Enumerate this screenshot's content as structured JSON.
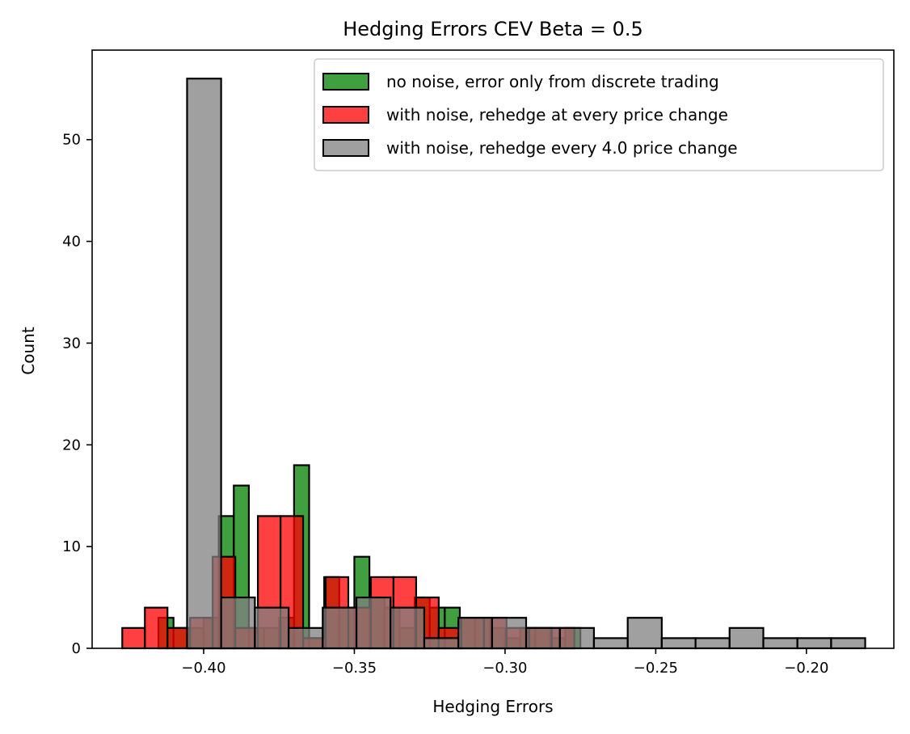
{
  "chart_data": {
    "type": "bar",
    "title": "Hedging Errors CEV Beta = 0.5",
    "xlabel": "Hedging Errors",
    "ylabel": "Count",
    "xlim": [
      -0.437,
      -0.171
    ],
    "ylim": [
      0,
      58.8
    ],
    "xticks": [
      -0.4,
      -0.35,
      -0.3,
      -0.25,
      -0.2
    ],
    "xtick_labels": [
      "−0.40",
      "−0.35",
      "−0.30",
      "−0.25",
      "−0.20"
    ],
    "yticks": [
      0,
      10,
      20,
      30,
      40,
      50
    ],
    "ytick_labels": [
      "0",
      "10",
      "20",
      "30",
      "40",
      "50"
    ],
    "legend_position": "top-right",
    "series": [
      {
        "name": "no noise, error only from discrete trading",
        "color": "#008000",
        "bins": [
          {
            "x0": -0.415,
            "x1": -0.41,
            "count": 3
          },
          {
            "x0": -0.41,
            "x1": -0.405,
            "count": 2
          },
          {
            "x0": -0.405,
            "x1": -0.4,
            "count": 2
          },
          {
            "x0": -0.4,
            "x1": -0.395,
            "count": 3
          },
          {
            "x0": -0.395,
            "x1": -0.39,
            "count": 13
          },
          {
            "x0": -0.39,
            "x1": -0.385,
            "count": 16
          },
          {
            "x0": -0.385,
            "x1": -0.38,
            "count": 2
          },
          {
            "x0": -0.38,
            "x1": -0.375,
            "count": 2
          },
          {
            "x0": -0.375,
            "x1": -0.37,
            "count": 3
          },
          {
            "x0": -0.37,
            "x1": -0.365,
            "count": 18
          },
          {
            "x0": -0.365,
            "x1": -0.36,
            "count": 1
          },
          {
            "x0": -0.36,
            "x1": -0.355,
            "count": 7
          },
          {
            "x0": -0.355,
            "x1": -0.35,
            "count": 4
          },
          {
            "x0": -0.35,
            "x1": -0.345,
            "count": 9
          },
          {
            "x0": -0.345,
            "x1": -0.34,
            "count": 5
          },
          {
            "x0": -0.34,
            "x1": -0.335,
            "count": 4
          },
          {
            "x0": -0.335,
            "x1": -0.33,
            "count": 2
          },
          {
            "x0": -0.33,
            "x1": -0.325,
            "count": 5
          },
          {
            "x0": -0.325,
            "x1": -0.32,
            "count": 4
          },
          {
            "x0": -0.32,
            "x1": -0.315,
            "count": 4
          },
          {
            "x0": -0.315,
            "x1": -0.31,
            "count": 3
          },
          {
            "x0": -0.31,
            "x1": -0.305,
            "count": 3
          },
          {
            "x0": -0.305,
            "x1": -0.3,
            "count": 2
          },
          {
            "x0": -0.3,
            "x1": -0.295,
            "count": 1
          },
          {
            "x0": -0.295,
            "x1": -0.29,
            "count": 2
          },
          {
            "x0": -0.29,
            "x1": -0.285,
            "count": 2
          },
          {
            "x0": -0.285,
            "x1": -0.28,
            "count": 1
          },
          {
            "x0": -0.28,
            "x1": -0.275,
            "count": 2
          }
        ]
      },
      {
        "name": "with noise, rehedge at every price change",
        "color": "#ff0000",
        "bins": [
          {
            "x0": -0.427,
            "x1": -0.4195,
            "count": 2
          },
          {
            "x0": -0.4195,
            "x1": -0.412,
            "count": 4
          },
          {
            "x0": -0.412,
            "x1": -0.4045,
            "count": 2
          },
          {
            "x0": -0.4045,
            "x1": -0.397,
            "count": 3
          },
          {
            "x0": -0.397,
            "x1": -0.3895,
            "count": 9
          },
          {
            "x0": -0.3895,
            "x1": -0.382,
            "count": 2
          },
          {
            "x0": -0.382,
            "x1": -0.3745,
            "count": 13
          },
          {
            "x0": -0.3745,
            "x1": -0.367,
            "count": 13
          },
          {
            "x0": -0.367,
            "x1": -0.3595,
            "count": 1
          },
          {
            "x0": -0.3595,
            "x1": -0.352,
            "count": 7
          },
          {
            "x0": -0.352,
            "x1": -0.3445,
            "count": 4
          },
          {
            "x0": -0.3445,
            "x1": -0.337,
            "count": 7
          },
          {
            "x0": -0.337,
            "x1": -0.3295,
            "count": 7
          },
          {
            "x0": -0.3295,
            "x1": -0.322,
            "count": 5
          },
          {
            "x0": -0.322,
            "x1": -0.3145,
            "count": 2
          },
          {
            "x0": -0.3145,
            "x1": -0.307,
            "count": 3
          },
          {
            "x0": -0.307,
            "x1": -0.2995,
            "count": 3
          },
          {
            "x0": -0.2995,
            "x1": -0.292,
            "count": 2
          },
          {
            "x0": -0.292,
            "x1": -0.2845,
            "count": 2
          },
          {
            "x0": -0.2845,
            "x1": -0.277,
            "count": 2
          }
        ]
      },
      {
        "name": "with noise, rehedge every 4.0 price change",
        "color": "#808080",
        "bins": [
          {
            "x0": -0.4055,
            "x1": -0.3942,
            "count": 56
          },
          {
            "x0": -0.3942,
            "x1": -0.383,
            "count": 5
          },
          {
            "x0": -0.383,
            "x1": -0.3718,
            "count": 4
          },
          {
            "x0": -0.3718,
            "x1": -0.3605,
            "count": 2
          },
          {
            "x0": -0.3605,
            "x1": -0.3493,
            "count": 4
          },
          {
            "x0": -0.3493,
            "x1": -0.338,
            "count": 5
          },
          {
            "x0": -0.338,
            "x1": -0.3268,
            "count": 4
          },
          {
            "x0": -0.3268,
            "x1": -0.3155,
            "count": 1
          },
          {
            "x0": -0.3155,
            "x1": -0.3043,
            "count": 3
          },
          {
            "x0": -0.3043,
            "x1": -0.293,
            "count": 3
          },
          {
            "x0": -0.293,
            "x1": -0.2818,
            "count": 2
          },
          {
            "x0": -0.2818,
            "x1": -0.2705,
            "count": 2
          },
          {
            "x0": -0.2705,
            "x1": -0.2593,
            "count": 1
          },
          {
            "x0": -0.2593,
            "x1": -0.248,
            "count": 3
          },
          {
            "x0": -0.248,
            "x1": -0.2368,
            "count": 1
          },
          {
            "x0": -0.2368,
            "x1": -0.2255,
            "count": 1
          },
          {
            "x0": -0.2255,
            "x1": -0.2143,
            "count": 2
          },
          {
            "x0": -0.2143,
            "x1": -0.203,
            "count": 1
          },
          {
            "x0": -0.203,
            "x1": -0.1918,
            "count": 1
          },
          {
            "x0": -0.1918,
            "x1": -0.1805,
            "count": 1
          }
        ]
      }
    ]
  }
}
